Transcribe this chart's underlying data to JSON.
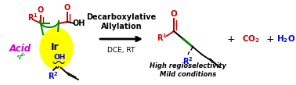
{
  "bg_color": "#ffffff",
  "fig_width": 3.78,
  "fig_height": 1.09,
  "dpi": 100,
  "acid_text": "Acid",
  "acid_color": "#cc00cc",
  "acid_fontsize": 8.5,
  "decarb_text": "Decarboxylative\nAllylation",
  "decarb_fontsize": 7.0,
  "dce_text": "DCE, RT",
  "dce_fontsize": 6.5,
  "plus_fontsize": 9,
  "plus_color": "#000000",
  "co2_color": "#cc0000",
  "co2_fontsize": 7.5,
  "h2o_color": "#0000cc",
  "h2o_fontsize": 7.5,
  "high_reg_text": "High regioselectivity\nMild conditions",
  "high_reg_fontsize": 6.0,
  "red": "#cc0000",
  "green": "#008800",
  "blue": "#0000cc",
  "black": "#000000",
  "yellow": "#ffff00",
  "navy": "#000080",
  "purple": "#cc00cc"
}
